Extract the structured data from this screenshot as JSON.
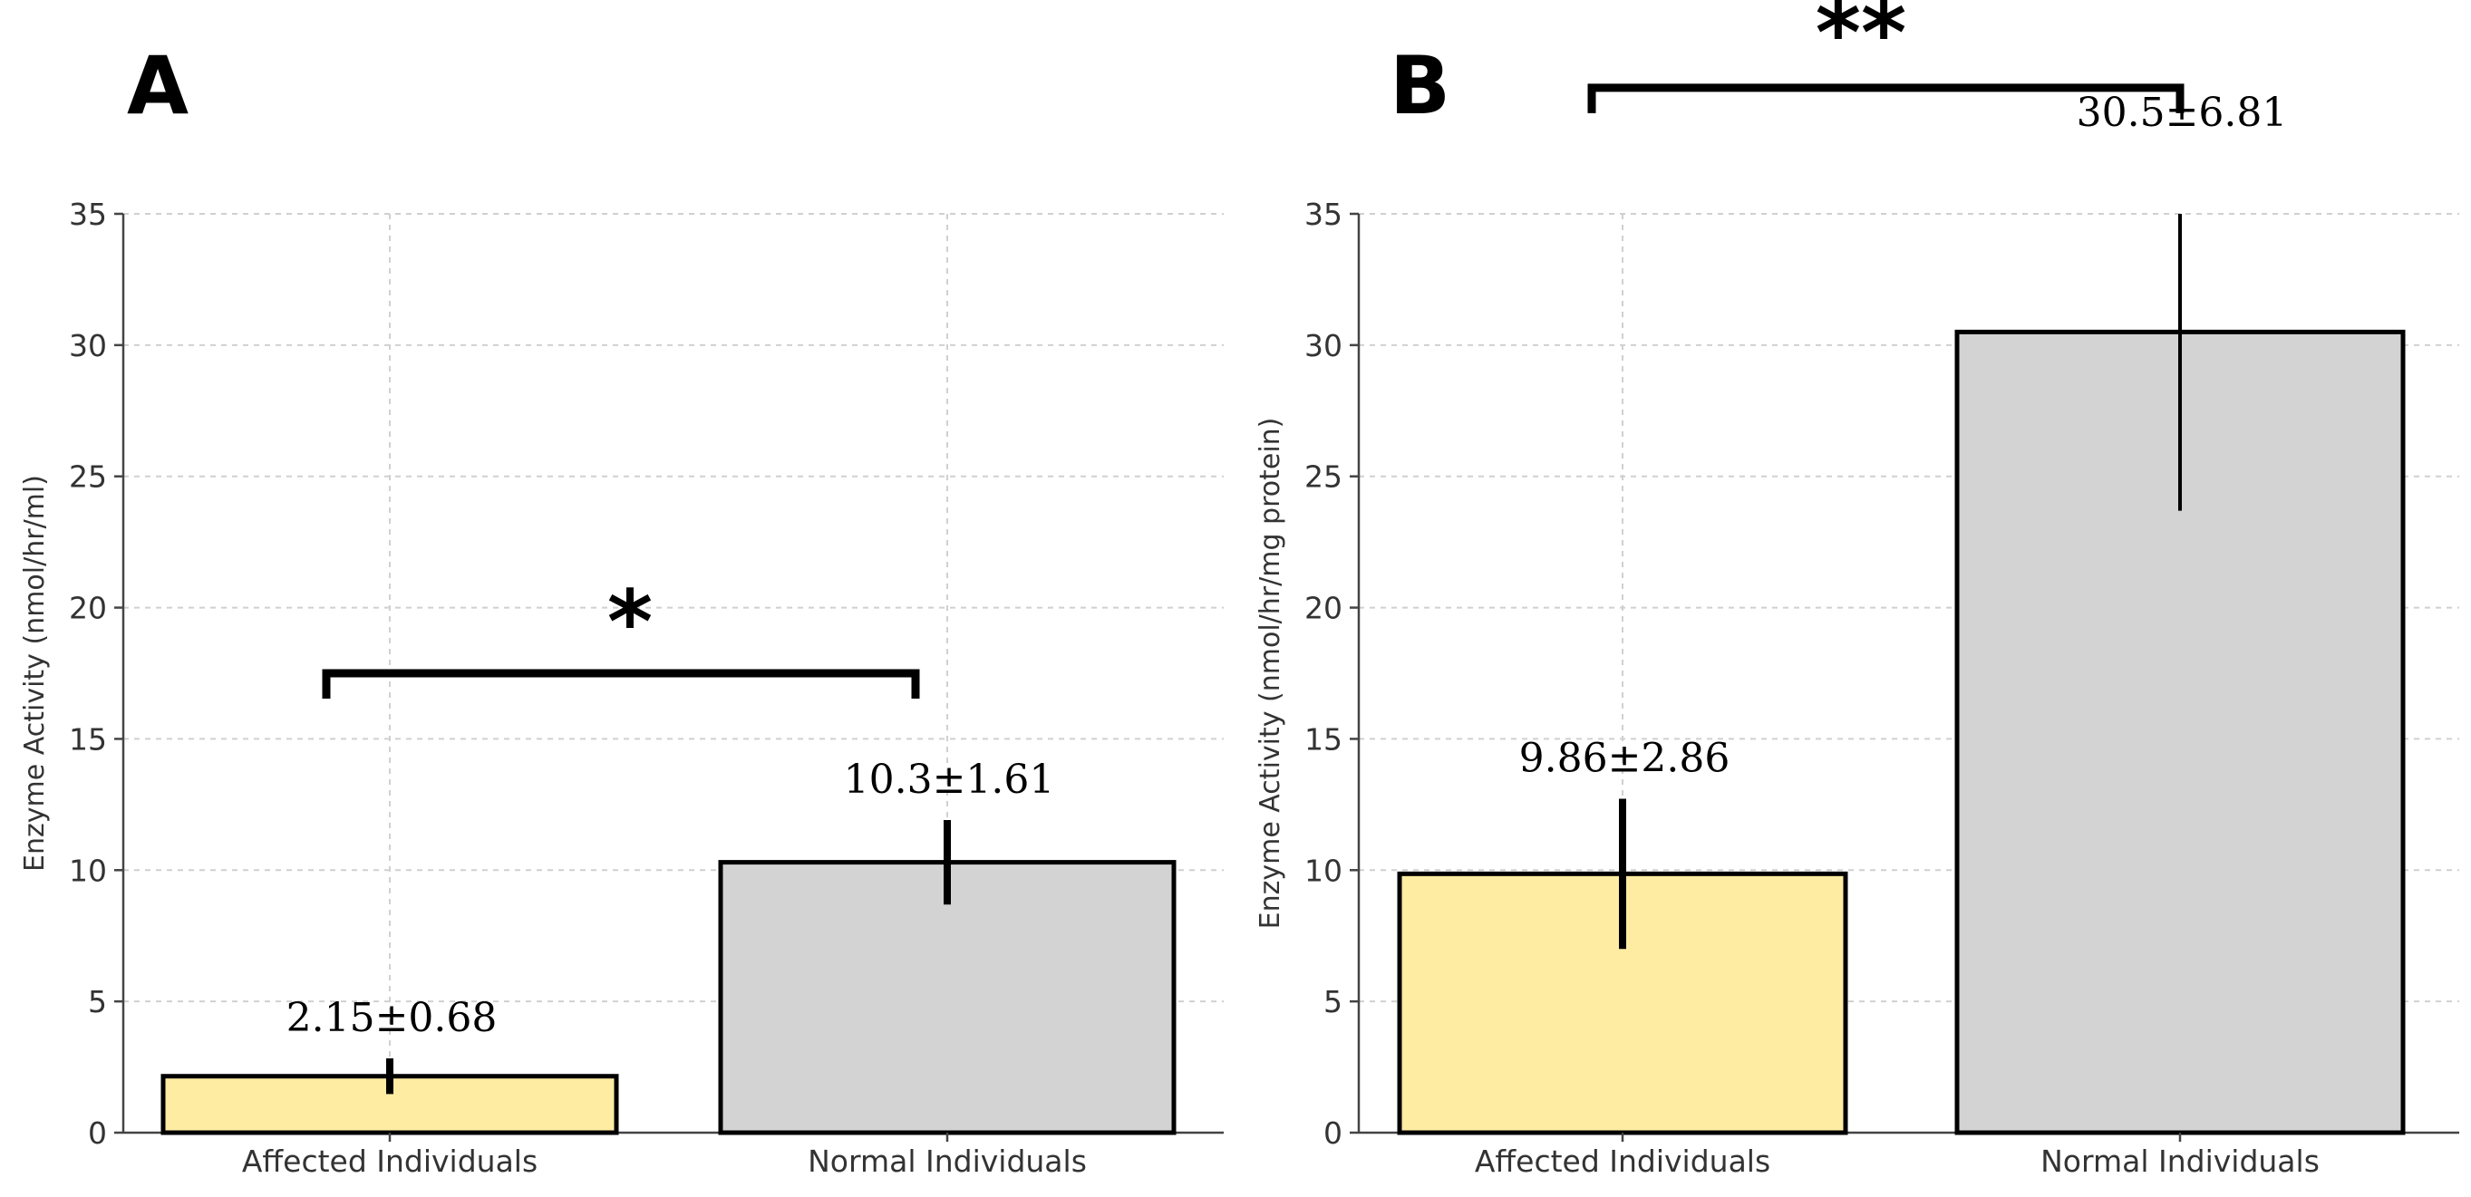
{
  "colors": {
    "affected": "#ffeca3",
    "normal": "#d3d3d3"
  },
  "chart_data": [
    {
      "panel": "A",
      "type": "bar",
      "categories": [
        "Affected Individuals",
        "Normal Individuals"
      ],
      "values": [
        2.15,
        10.3
      ],
      "errors": [
        0.68,
        1.61
      ],
      "value_labels": [
        "2.15±0.68",
        "10.3±1.61"
      ],
      "title": "",
      "xlabel": "",
      "ylabel": "Enzyme Activity (nmol/hr/ml)",
      "ylim": [
        0,
        35
      ],
      "yticks": [
        0,
        5,
        10,
        15,
        20,
        25,
        30,
        35
      ],
      "ytick_labels": [
        "0",
        "5",
        "10",
        "15",
        "20",
        "25",
        "30",
        "35"
      ],
      "grid": true,
      "significance": "*",
      "bracket_level": 17.5,
      "errorbar_style": "thick"
    },
    {
      "panel": "B",
      "type": "bar",
      "categories": [
        "Affected Individuals",
        "Normal Individuals"
      ],
      "values": [
        9.86,
        30.5
      ],
      "errors": [
        2.86,
        6.81
      ],
      "value_labels": [
        "9.86±2.86",
        "30.5±6.81"
      ],
      "title": "",
      "xlabel": "",
      "ylabel": "Enzyme Activity (nmol/hr/mg protein)",
      "ylim": [
        0,
        35
      ],
      "yticks": [
        0,
        5,
        10,
        15,
        20,
        25,
        30,
        35
      ],
      "ytick_labels": [
        "0",
        "5",
        "10",
        "15",
        "20",
        "25",
        "30",
        "35"
      ],
      "grid": true,
      "significance": "**",
      "bracket_level": 39.8,
      "errorbar_style": "mixed"
    }
  ]
}
